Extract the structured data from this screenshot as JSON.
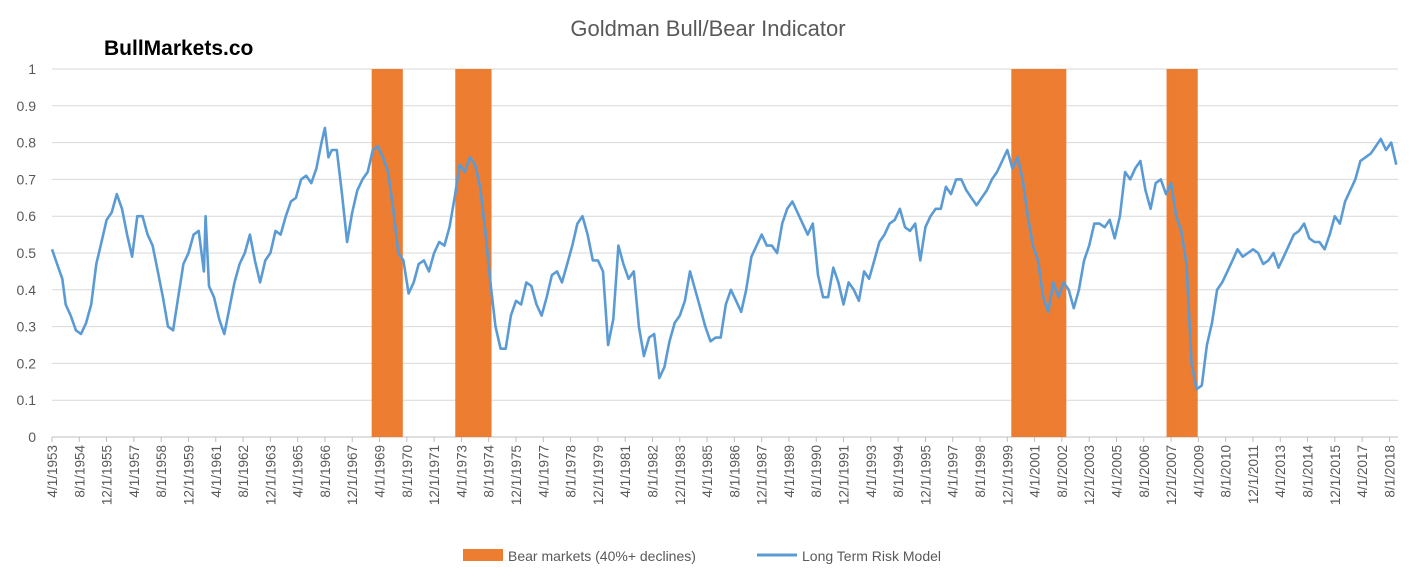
{
  "brand": "BullMarkets.co",
  "chart_data": {
    "type": "line",
    "title": "Goldman Bull/Bear Indicator",
    "xlabel": "",
    "ylabel": "",
    "ylim": [
      0,
      1
    ],
    "yticks": [
      "0",
      "0.1",
      "0.2",
      "0.3",
      "0.4",
      "0.5",
      "0.6",
      "0.7",
      "0.8",
      "0.9",
      "1"
    ],
    "xlim": [
      "1953-04-01",
      "2019-01-01"
    ],
    "xtick_labels": [
      "4/1/1953",
      "8/1/1954",
      "12/1/1955",
      "4/1/1957",
      "8/1/1958",
      "12/1/1959",
      "4/1/1961",
      "8/1/1962",
      "12/1/1963",
      "4/1/1965",
      "8/1/1966",
      "12/1/1967",
      "4/1/1969",
      "8/1/1970",
      "12/1/1971",
      "4/1/1973",
      "8/1/1974",
      "12/1/1975",
      "4/1/1977",
      "8/1/1978",
      "12/1/1979",
      "4/1/1981",
      "8/1/1982",
      "12/1/1983",
      "4/1/1985",
      "8/1/1986",
      "12/1/1987",
      "4/1/1989",
      "8/1/1990",
      "12/1/1991",
      "4/1/1993",
      "8/1/1994",
      "12/1/1995",
      "4/1/1997",
      "8/1/1998",
      "12/1/1999",
      "4/1/2001",
      "8/1/2002",
      "12/1/2003",
      "4/1/2005",
      "8/1/2006",
      "12/1/2007",
      "4/1/2009",
      "8/1/2010",
      "12/1/2011",
      "4/1/2013",
      "8/1/2014",
      "12/1/2015",
      "4/1/2017",
      "8/1/2018"
    ],
    "grid": true,
    "legend_position": "bottom",
    "legend": [
      {
        "name": "Bear markets (40%+ declines)",
        "type": "bar",
        "color": "#ed7d31"
      },
      {
        "name": "Long Term Risk Model",
        "type": "line",
        "color": "#5b9bd5"
      }
    ],
    "bear_markets": [
      {
        "start": "1968-12-01",
        "end": "1970-06-01",
        "value": 1
      },
      {
        "start": "1973-01-01",
        "end": "1974-10-01",
        "value": 1
      },
      {
        "start": "2000-03-01",
        "end": "2002-10-01",
        "value": 1
      },
      {
        "start": "2007-10-01",
        "end": "2009-03-01",
        "value": 1
      }
    ],
    "series": [
      {
        "name": "Long Term Risk Model",
        "color": "#5b9bd5",
        "points": [
          [
            "1953-04",
            0.51
          ],
          [
            "1953-07",
            0.47
          ],
          [
            "1953-10",
            0.43
          ],
          [
            "1953-12",
            0.36
          ],
          [
            "1954-03",
            0.33
          ],
          [
            "1954-06",
            0.29
          ],
          [
            "1954-09",
            0.28
          ],
          [
            "1954-12",
            0.31
          ],
          [
            "1955-03",
            0.36
          ],
          [
            "1955-06",
            0.47
          ],
          [
            "1955-09",
            0.53
          ],
          [
            "1955-12",
            0.59
          ],
          [
            "1956-03",
            0.61
          ],
          [
            "1956-06",
            0.66
          ],
          [
            "1956-09",
            0.62
          ],
          [
            "1956-12",
            0.55
          ],
          [
            "1957-03",
            0.49
          ],
          [
            "1957-06",
            0.6
          ],
          [
            "1957-09",
            0.6
          ],
          [
            "1957-12",
            0.55
          ],
          [
            "1958-03",
            0.52
          ],
          [
            "1958-06",
            0.45
          ],
          [
            "1958-09",
            0.38
          ],
          [
            "1958-12",
            0.3
          ],
          [
            "1959-03",
            0.29
          ],
          [
            "1959-06",
            0.38
          ],
          [
            "1959-09",
            0.47
          ],
          [
            "1959-12",
            0.5
          ],
          [
            "1960-03",
            0.55
          ],
          [
            "1960-06",
            0.56
          ],
          [
            "1960-09",
            0.45
          ],
          [
            "1960-10",
            0.6
          ],
          [
            "1960-12",
            0.41
          ],
          [
            "1961-03",
            0.38
          ],
          [
            "1961-06",
            0.32
          ],
          [
            "1961-09",
            0.28
          ],
          [
            "1961-12",
            0.35
          ],
          [
            "1962-03",
            0.42
          ],
          [
            "1962-06",
            0.47
          ],
          [
            "1962-09",
            0.5
          ],
          [
            "1962-12",
            0.55
          ],
          [
            "1963-03",
            0.48
          ],
          [
            "1963-06",
            0.42
          ],
          [
            "1963-09",
            0.48
          ],
          [
            "1963-12",
            0.5
          ],
          [
            "1964-03",
            0.56
          ],
          [
            "1964-06",
            0.55
          ],
          [
            "1964-09",
            0.6
          ],
          [
            "1964-12",
            0.64
          ],
          [
            "1965-03",
            0.65
          ],
          [
            "1965-06",
            0.7
          ],
          [
            "1965-09",
            0.71
          ],
          [
            "1965-12",
            0.69
          ],
          [
            "1966-03",
            0.73
          ],
          [
            "1966-06",
            0.8
          ],
          [
            "1966-08",
            0.84
          ],
          [
            "1966-10",
            0.76
          ],
          [
            "1966-12",
            0.78
          ],
          [
            "1967-03",
            0.78
          ],
          [
            "1967-06",
            0.66
          ],
          [
            "1967-09",
            0.53
          ],
          [
            "1967-12",
            0.61
          ],
          [
            "1968-03",
            0.67
          ],
          [
            "1968-06",
            0.7
          ],
          [
            "1968-09",
            0.72
          ],
          [
            "1968-12",
            0.78
          ],
          [
            "1969-03",
            0.79
          ],
          [
            "1969-06",
            0.76
          ],
          [
            "1969-09",
            0.72
          ],
          [
            "1969-12",
            0.62
          ],
          [
            "1970-03",
            0.5
          ],
          [
            "1970-06",
            0.48
          ],
          [
            "1970-09",
            0.39
          ],
          [
            "1970-12",
            0.42
          ],
          [
            "1971-03",
            0.47
          ],
          [
            "1971-06",
            0.48
          ],
          [
            "1971-09",
            0.45
          ],
          [
            "1971-12",
            0.5
          ],
          [
            "1972-03",
            0.53
          ],
          [
            "1972-06",
            0.52
          ],
          [
            "1972-09",
            0.57
          ],
          [
            "1972-12",
            0.65
          ],
          [
            "1973-03",
            0.74
          ],
          [
            "1973-06",
            0.72
          ],
          [
            "1973-09",
            0.76
          ],
          [
            "1973-12",
            0.74
          ],
          [
            "1974-03",
            0.68
          ],
          [
            "1974-06",
            0.56
          ],
          [
            "1974-09",
            0.42
          ],
          [
            "1974-12",
            0.3
          ],
          [
            "1975-03",
            0.24
          ],
          [
            "1975-06",
            0.24
          ],
          [
            "1975-09",
            0.33
          ],
          [
            "1975-12",
            0.37
          ],
          [
            "1976-03",
            0.36
          ],
          [
            "1976-06",
            0.42
          ],
          [
            "1976-09",
            0.41
          ],
          [
            "1976-12",
            0.36
          ],
          [
            "1977-03",
            0.33
          ],
          [
            "1977-06",
            0.38
          ],
          [
            "1977-09",
            0.44
          ],
          [
            "1977-12",
            0.45
          ],
          [
            "1978-03",
            0.42
          ],
          [
            "1978-06",
            0.47
          ],
          [
            "1978-09",
            0.52
          ],
          [
            "1978-12",
            0.58
          ],
          [
            "1979-03",
            0.6
          ],
          [
            "1979-06",
            0.55
          ],
          [
            "1979-09",
            0.48
          ],
          [
            "1979-12",
            0.48
          ],
          [
            "1980-03",
            0.45
          ],
          [
            "1980-06",
            0.25
          ],
          [
            "1980-09",
            0.32
          ],
          [
            "1980-12",
            0.52
          ],
          [
            "1981-03",
            0.47
          ],
          [
            "1981-06",
            0.43
          ],
          [
            "1981-09",
            0.45
          ],
          [
            "1981-12",
            0.3
          ],
          [
            "1982-03",
            0.22
          ],
          [
            "1982-06",
            0.27
          ],
          [
            "1982-09",
            0.28
          ],
          [
            "1982-12",
            0.16
          ],
          [
            "1983-03",
            0.19
          ],
          [
            "1983-06",
            0.26
          ],
          [
            "1983-09",
            0.31
          ],
          [
            "1983-12",
            0.33
          ],
          [
            "1984-03",
            0.37
          ],
          [
            "1984-06",
            0.45
          ],
          [
            "1984-09",
            0.4
          ],
          [
            "1984-12",
            0.35
          ],
          [
            "1985-03",
            0.3
          ],
          [
            "1985-06",
            0.26
          ],
          [
            "1985-09",
            0.27
          ],
          [
            "1985-12",
            0.27
          ],
          [
            "1986-03",
            0.36
          ],
          [
            "1986-06",
            0.4
          ],
          [
            "1986-09",
            0.37
          ],
          [
            "1986-12",
            0.34
          ],
          [
            "1987-03",
            0.4
          ],
          [
            "1987-06",
            0.49
          ],
          [
            "1987-09",
            0.52
          ],
          [
            "1987-12",
            0.55
          ],
          [
            "1988-03",
            0.52
          ],
          [
            "1988-06",
            0.52
          ],
          [
            "1988-09",
            0.5
          ],
          [
            "1988-12",
            0.58
          ],
          [
            "1989-03",
            0.62
          ],
          [
            "1989-06",
            0.64
          ],
          [
            "1989-09",
            0.61
          ],
          [
            "1989-12",
            0.58
          ],
          [
            "1990-03",
            0.55
          ],
          [
            "1990-06",
            0.58
          ],
          [
            "1990-09",
            0.44
          ],
          [
            "1990-12",
            0.38
          ],
          [
            "1991-03",
            0.38
          ],
          [
            "1991-06",
            0.46
          ],
          [
            "1991-09",
            0.42
          ],
          [
            "1991-12",
            0.36
          ],
          [
            "1992-03",
            0.42
          ],
          [
            "1992-06",
            0.4
          ],
          [
            "1992-09",
            0.37
          ],
          [
            "1992-12",
            0.45
          ],
          [
            "1993-03",
            0.43
          ],
          [
            "1993-06",
            0.48
          ],
          [
            "1993-09",
            0.53
          ],
          [
            "1993-12",
            0.55
          ],
          [
            "1994-03",
            0.58
          ],
          [
            "1994-06",
            0.59
          ],
          [
            "1994-09",
            0.62
          ],
          [
            "1994-12",
            0.57
          ],
          [
            "1995-03",
            0.56
          ],
          [
            "1995-06",
            0.58
          ],
          [
            "1995-09",
            0.48
          ],
          [
            "1995-12",
            0.57
          ],
          [
            "1996-03",
            0.6
          ],
          [
            "1996-06",
            0.62
          ],
          [
            "1996-09",
            0.62
          ],
          [
            "1996-12",
            0.68
          ],
          [
            "1997-03",
            0.66
          ],
          [
            "1997-06",
            0.7
          ],
          [
            "1997-09",
            0.7
          ],
          [
            "1997-12",
            0.67
          ],
          [
            "1998-03",
            0.65
          ],
          [
            "1998-06",
            0.63
          ],
          [
            "1998-09",
            0.65
          ],
          [
            "1998-12",
            0.67
          ],
          [
            "1999-03",
            0.7
          ],
          [
            "1999-06",
            0.72
          ],
          [
            "1999-09",
            0.75
          ],
          [
            "1999-12",
            0.78
          ],
          [
            "2000-03",
            0.73
          ],
          [
            "2000-06",
            0.76
          ],
          [
            "2000-09",
            0.7
          ],
          [
            "2000-12",
            0.6
          ],
          [
            "2001-03",
            0.52
          ],
          [
            "2001-06",
            0.48
          ],
          [
            "2001-09",
            0.38
          ],
          [
            "2001-12",
            0.34
          ],
          [
            "2002-03",
            0.42
          ],
          [
            "2002-06",
            0.38
          ],
          [
            "2002-09",
            0.42
          ],
          [
            "2002-12",
            0.4
          ],
          [
            "2003-03",
            0.35
          ],
          [
            "2003-06",
            0.4
          ],
          [
            "2003-09",
            0.48
          ],
          [
            "2003-12",
            0.52
          ],
          [
            "2004-03",
            0.58
          ],
          [
            "2004-06",
            0.58
          ],
          [
            "2004-09",
            0.57
          ],
          [
            "2004-12",
            0.59
          ],
          [
            "2005-03",
            0.54
          ],
          [
            "2005-06",
            0.6
          ],
          [
            "2005-09",
            0.72
          ],
          [
            "2005-12",
            0.7
          ],
          [
            "2006-03",
            0.73
          ],
          [
            "2006-06",
            0.75
          ],
          [
            "2006-09",
            0.67
          ],
          [
            "2006-12",
            0.62
          ],
          [
            "2007-03",
            0.69
          ],
          [
            "2007-06",
            0.7
          ],
          [
            "2007-09",
            0.66
          ],
          [
            "2007-12",
            0.69
          ],
          [
            "2008-03",
            0.6
          ],
          [
            "2008-06",
            0.56
          ],
          [
            "2008-09",
            0.47
          ],
          [
            "2008-12",
            0.2
          ],
          [
            "2009-03",
            0.13
          ],
          [
            "2009-06",
            0.14
          ],
          [
            "2009-09",
            0.25
          ],
          [
            "2009-12",
            0.31
          ],
          [
            "2010-03",
            0.4
          ],
          [
            "2010-06",
            0.42
          ],
          [
            "2010-09",
            0.45
          ],
          [
            "2010-12",
            0.48
          ],
          [
            "2011-03",
            0.51
          ],
          [
            "2011-06",
            0.49
          ],
          [
            "2011-09",
            0.5
          ],
          [
            "2011-12",
            0.51
          ],
          [
            "2012-03",
            0.5
          ],
          [
            "2012-06",
            0.47
          ],
          [
            "2012-09",
            0.48
          ],
          [
            "2012-12",
            0.5
          ],
          [
            "2013-03",
            0.46
          ],
          [
            "2013-06",
            0.49
          ],
          [
            "2013-09",
            0.52
          ],
          [
            "2013-12",
            0.55
          ],
          [
            "2014-03",
            0.56
          ],
          [
            "2014-06",
            0.58
          ],
          [
            "2014-09",
            0.54
          ],
          [
            "2014-12",
            0.53
          ],
          [
            "2015-03",
            0.53
          ],
          [
            "2015-06",
            0.51
          ],
          [
            "2015-09",
            0.55
          ],
          [
            "2015-12",
            0.6
          ],
          [
            "2016-03",
            0.58
          ],
          [
            "2016-06",
            0.64
          ],
          [
            "2016-09",
            0.67
          ],
          [
            "2016-12",
            0.7
          ],
          [
            "2017-03",
            0.75
          ],
          [
            "2017-06",
            0.76
          ],
          [
            "2017-09",
            0.77
          ],
          [
            "2017-12",
            0.79
          ],
          [
            "2018-03",
            0.81
          ],
          [
            "2018-06",
            0.78
          ],
          [
            "2018-09",
            0.8
          ],
          [
            "2018-12",
            0.74
          ]
        ]
      }
    ]
  }
}
